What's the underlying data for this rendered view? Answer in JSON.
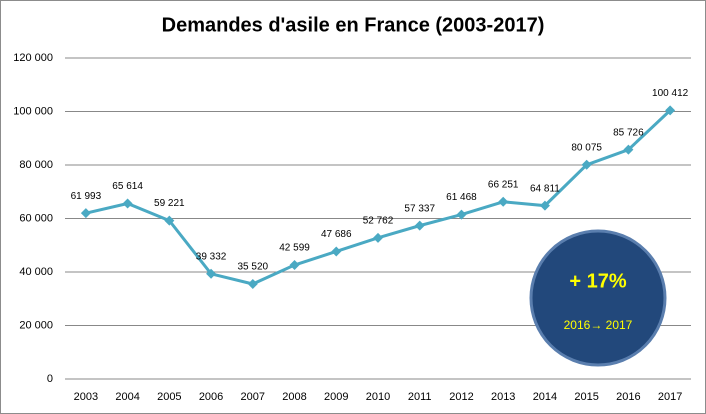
{
  "chart_data": {
    "type": "line",
    "title": "Demandes d'asile en France (2003-2017)",
    "categories": [
      "2003",
      "2004",
      "2005",
      "2006",
      "2007",
      "2008",
      "2009",
      "2010",
      "2011",
      "2012",
      "2013",
      "2014",
      "2015",
      "2016",
      "2017"
    ],
    "series": [
      {
        "name": "Demandes d'asile",
        "color": "#4aa9c3",
        "values": [
          61993,
          65614,
          59221,
          39332,
          35520,
          42599,
          47686,
          52762,
          57337,
          61468,
          66251,
          64811,
          80075,
          85726,
          100412
        ],
        "value_labels": [
          "61 993",
          "65 614",
          "59 221",
          "39 332",
          "35 520",
          "42 599",
          "47 686",
          "52 762",
          "57 337",
          "61 468",
          "66 251",
          "64 811",
          "80 075",
          "85 726",
          "100 412"
        ]
      }
    ],
    "ylim": [
      0,
      120000
    ],
    "yticks": [
      0,
      {
        "value": 20000,
        "label": "20 000"
      },
      {
        "value": 40000,
        "label": "40 000"
      },
      {
        "value": 60000,
        "label": "60 000"
      },
      {
        "value": 80000,
        "label": "80 000"
      },
      {
        "value": 100000,
        "label": "100 000"
      },
      {
        "value": 120000,
        "label": "120 000"
      }
    ],
    "grid": true,
    "annotation": {
      "text": "+ 17%",
      "subtext": "2016→ 2017"
    }
  }
}
